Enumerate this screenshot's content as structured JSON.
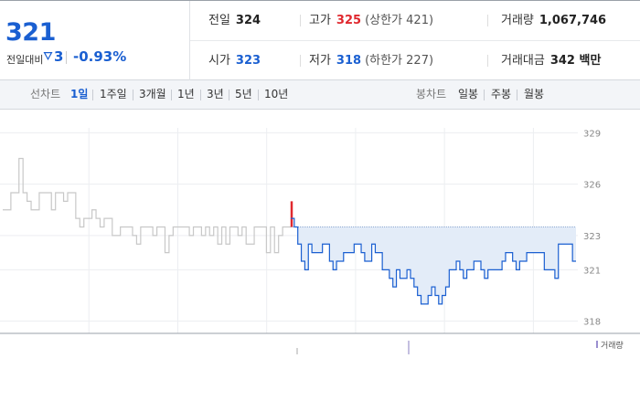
{
  "quote": {
    "current": "321",
    "change_label": "전일대비",
    "change_value": "3",
    "change_pct": "-0.93%",
    "prev_close": {
      "label": "전일",
      "value": "324"
    },
    "high": {
      "label": "고가",
      "value": "325",
      "limit": "(상한가 421)"
    },
    "volume": {
      "label": "거래량",
      "value": "1,067,746"
    },
    "open": {
      "label": "시가",
      "value": "323"
    },
    "low": {
      "label": "저가",
      "value": "318",
      "limit": "(하한가 227)"
    },
    "amount": {
      "label": "거래대금",
      "value": "342 백만"
    }
  },
  "toolbar": {
    "line_label": "선차트",
    "line_periods": [
      "1일",
      "1주일",
      "3개월",
      "1년",
      "3년",
      "5년",
      "10년"
    ],
    "active_period": "1일",
    "candle_label": "봉차트",
    "candle_periods": [
      "일봉",
      "주봉",
      "월봉"
    ]
  },
  "colors": {
    "up": "#e0282e",
    "down": "#1a5fd1",
    "prev_day": "#c8c8c8",
    "fill": "#e3ecf8"
  },
  "chart_data": {
    "type": "line",
    "title": "",
    "xlabel": "",
    "ylabel": "",
    "ylim": [
      317.5,
      329.5
    ],
    "yticks": [
      "329",
      "326",
      "323",
      "321",
      "318"
    ],
    "ytick_values": [
      329,
      326,
      323,
      321,
      318
    ],
    "reference_price": 323.5,
    "volume_legend": "거래량",
    "grid": true,
    "series": [
      {
        "name": "",
        "color": "#c8c8c8",
        "values": [
          324.5,
          324.5,
          325.5,
          325.5,
          327.5,
          325.5,
          325,
          324.5,
          324.5,
          325.5,
          325.5,
          325.5,
          324.5,
          325.5,
          325.5,
          325,
          325.5,
          325.5,
          324,
          323.5,
          324,
          324,
          324.5,
          324,
          323.5,
          324,
          324,
          323,
          323,
          323.5,
          323.5,
          323.5,
          323,
          322.5,
          323.5,
          323.5,
          323.5,
          323,
          323.5,
          323.5,
          322,
          323,
          323.5,
          323.5,
          323.5,
          323.5,
          323,
          323.5,
          323.5,
          323,
          323.5,
          323,
          323.5,
          322.5,
          323.5,
          322.5,
          323.5,
          323.5,
          323,
          323.5,
          322.5,
          322.5,
          323.5,
          323.5,
          323.5,
          322,
          323.5,
          322,
          323,
          323.5,
          323.5
        ]
      },
      {
        "name": "",
        "color": "#1a5fd1",
        "values": [
          324,
          323.5,
          322.5,
          321.5,
          321,
          322.5,
          322,
          322,
          322,
          322.5,
          322.5,
          321.5,
          321,
          321.5,
          321.5,
          322,
          322,
          322,
          322.5,
          322.5,
          322,
          321.5,
          321.5,
          322.5,
          322,
          322,
          321,
          321,
          320.5,
          320,
          321,
          320.5,
          320.5,
          321,
          320.5,
          320,
          319.5,
          319,
          319,
          319.5,
          320,
          319.5,
          319,
          319.5,
          320,
          321,
          321,
          321.5,
          321,
          320.5,
          321,
          321,
          321.5,
          321.5,
          321,
          320.5,
          321,
          321,
          321,
          321,
          321.5,
          322,
          322,
          321.5,
          321,
          321.5,
          321.5,
          322,
          322,
          322,
          322,
          322,
          321,
          321,
          321,
          320.5,
          322.5,
          322.5,
          322.5,
          322.5,
          321.5
        ]
      }
    ]
  }
}
